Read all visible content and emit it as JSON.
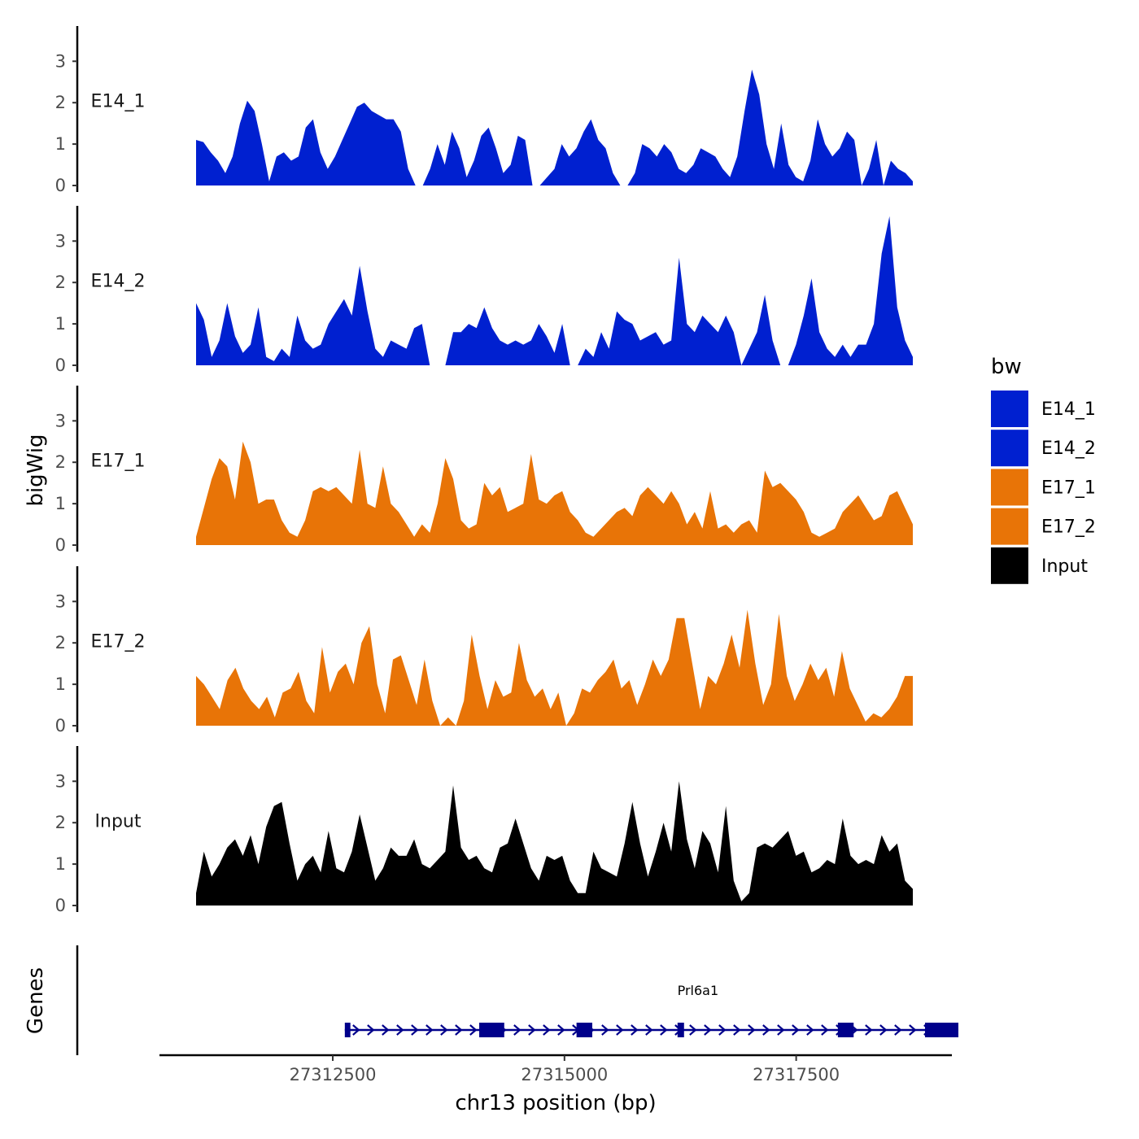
{
  "chart_data": {
    "type": "area",
    "chromosome": "chr13",
    "xlabel": "chr13 position (bp)",
    "ylabel": "bigWig",
    "genes_label": "Genes",
    "xlim": [
      27310630,
      27319180
    ],
    "x_ticks": [
      27312500,
      27315000,
      27317500
    ],
    "x_tick_labels": [
      "27312500",
      "27315000",
      "27317500"
    ],
    "ylim": [
      0,
      3.8
    ],
    "y_ticks": [
      0,
      1,
      2,
      3
    ],
    "y_tick_labels": [
      "0",
      "1",
      "2",
      "3"
    ],
    "grid": false,
    "legend": {
      "title": "bw",
      "position": "right",
      "entries": [
        {
          "name": "E14_1",
          "color": "#0020D0"
        },
        {
          "name": "E14_2",
          "color": "#0020D0"
        },
        {
          "name": "E17_1",
          "color": "#E87407"
        },
        {
          "name": "E17_2",
          "color": "#E87407"
        },
        {
          "name": "Input",
          "color": "#000000"
        }
      ]
    },
    "x_range": [
      27311080,
      27319620
    ],
    "series": [
      {
        "name": "E14_1",
        "color": "#0020D0",
        "values": [
          1.1,
          1.05,
          0.8,
          0.6,
          0.3,
          0.7,
          1.5,
          2.05,
          1.8,
          1.0,
          0.1,
          0.7,
          0.8,
          0.6,
          0.7,
          1.4,
          1.6,
          0.8,
          0.4,
          0.7,
          1.1,
          1.5,
          1.9,
          2.0,
          1.8,
          1.7,
          1.6,
          1.6,
          1.3,
          0.4,
          0.0,
          0.0,
          0.4,
          1.0,
          0.5,
          1.3,
          0.9,
          0.2,
          0.6,
          1.2,
          1.4,
          0.9,
          0.3,
          0.5,
          1.2,
          1.1,
          0.0,
          0.0,
          0.2,
          0.4,
          1.0,
          0.7,
          0.9,
          1.3,
          1.6,
          1.1,
          0.9,
          0.3,
          0.0,
          0.0,
          0.3,
          1.0,
          0.9,
          0.7,
          1.0,
          0.8,
          0.4,
          0.3,
          0.5,
          0.9,
          0.8,
          0.7,
          0.4,
          0.2,
          0.7,
          1.8,
          2.8,
          2.2,
          1.0,
          0.4,
          1.5,
          0.5,
          0.2,
          0.1,
          0.6,
          1.6,
          1.0,
          0.7,
          0.9,
          1.3,
          1.1,
          0.0,
          0.4,
          1.1,
          0.0,
          0.6,
          0.4,
          0.3,
          0.1
        ]
      },
      {
        "name": "E14_2",
        "color": "#0020D0",
        "values": [
          1.5,
          1.1,
          0.2,
          0.6,
          1.5,
          0.7,
          0.3,
          0.5,
          1.4,
          0.2,
          0.1,
          0.4,
          0.2,
          1.2,
          0.6,
          0.4,
          0.5,
          1.0,
          1.3,
          1.6,
          1.2,
          2.4,
          1.3,
          0.4,
          0.2,
          0.6,
          0.5,
          0.4,
          0.9,
          1.0,
          0.0,
          0.0,
          0.0,
          0.8,
          0.8,
          1.0,
          0.9,
          1.4,
          0.9,
          0.6,
          0.5,
          0.6,
          0.5,
          0.6,
          1.0,
          0.7,
          0.3,
          1.0,
          0.0,
          0.0,
          0.4,
          0.2,
          0.8,
          0.4,
          1.3,
          1.1,
          1.0,
          0.6,
          0.7,
          0.8,
          0.5,
          0.6,
          2.6,
          1.0,
          0.8,
          1.2,
          1.0,
          0.8,
          1.2,
          0.8,
          0.0,
          0.4,
          0.8,
          1.7,
          0.6,
          0.0,
          0.0,
          0.5,
          1.2,
          2.1,
          0.8,
          0.4,
          0.2,
          0.5,
          0.2,
          0.5,
          0.5,
          1.0,
          2.7,
          3.6,
          1.4,
          0.6,
          0.2
        ]
      },
      {
        "name": "E17_1",
        "color": "#E87407",
        "values": [
          0.2,
          0.9,
          1.6,
          2.1,
          1.9,
          1.1,
          2.5,
          2.0,
          1.0,
          1.1,
          1.1,
          0.6,
          0.3,
          0.2,
          0.6,
          1.3,
          1.4,
          1.3,
          1.4,
          1.2,
          1.0,
          2.3,
          1.0,
          0.9,
          1.9,
          1.0,
          0.8,
          0.5,
          0.2,
          0.5,
          0.3,
          1.0,
          2.1,
          1.6,
          0.6,
          0.4,
          0.5,
          1.5,
          1.2,
          1.4,
          0.8,
          0.9,
          1.0,
          2.2,
          1.1,
          1.0,
          1.2,
          1.3,
          0.8,
          0.6,
          0.3,
          0.2,
          0.4,
          0.6,
          0.8,
          0.9,
          0.7,
          1.2,
          1.4,
          1.2,
          1.0,
          1.3,
          1.0,
          0.5,
          0.8,
          0.4,
          1.3,
          0.4,
          0.5,
          0.3,
          0.5,
          0.6,
          0.3,
          1.8,
          1.4,
          1.5,
          1.3,
          1.1,
          0.8,
          0.3,
          0.2,
          0.3,
          0.4,
          0.8,
          1.0,
          1.2,
          0.9,
          0.6,
          0.7,
          1.2,
          1.3,
          0.9,
          0.5
        ]
      },
      {
        "name": "E17_2",
        "color": "#E87407",
        "values": [
          1.2,
          1.0,
          0.7,
          0.4,
          1.1,
          1.4,
          0.9,
          0.6,
          0.4,
          0.7,
          0.2,
          0.8,
          0.9,
          1.3,
          0.6,
          0.3,
          1.9,
          0.8,
          1.3,
          1.5,
          1.0,
          2.0,
          2.4,
          1.0,
          0.3,
          1.6,
          1.7,
          1.1,
          0.5,
          1.6,
          0.6,
          0.0,
          0.2,
          0.0,
          0.6,
          2.2,
          1.2,
          0.4,
          1.1,
          0.7,
          0.8,
          2.0,
          1.1,
          0.7,
          0.9,
          0.4,
          0.8,
          0.0,
          0.3,
          0.9,
          0.8,
          1.1,
          1.3,
          1.6,
          0.9,
          1.1,
          0.5,
          1.0,
          1.6,
          1.2,
          1.6,
          2.6,
          2.6,
          1.5,
          0.4,
          1.2,
          1.0,
          1.5,
          2.2,
          1.4,
          2.8,
          1.5,
          0.5,
          1.0,
          2.7,
          1.2,
          0.6,
          1.0,
          1.5,
          1.1,
          1.4,
          0.7,
          1.8,
          0.9,
          0.5,
          0.1,
          0.3,
          0.2,
          0.4,
          0.7,
          1.2,
          1.2
        ]
      },
      {
        "name": "Input",
        "color": "#000000",
        "values": [
          0.3,
          1.3,
          0.7,
          1.0,
          1.4,
          1.6,
          1.2,
          1.7,
          1.0,
          1.9,
          2.4,
          2.5,
          1.5,
          0.6,
          1.0,
          1.2,
          0.8,
          1.8,
          0.9,
          0.8,
          1.3,
          2.2,
          1.4,
          0.6,
          0.9,
          1.4,
          1.2,
          1.2,
          1.6,
          1.0,
          0.9,
          1.1,
          1.3,
          2.9,
          1.4,
          1.1,
          1.2,
          0.9,
          0.8,
          1.4,
          1.5,
          2.1,
          1.5,
          0.9,
          0.6,
          1.2,
          1.1,
          1.2,
          0.6,
          0.3,
          0.3,
          1.3,
          0.9,
          0.8,
          0.7,
          1.5,
          2.5,
          1.5,
          0.7,
          1.3,
          2.0,
          1.3,
          3.0,
          1.6,
          0.9,
          1.8,
          1.5,
          0.8,
          2.4,
          0.6,
          0.1,
          0.3,
          1.4,
          1.5,
          1.4,
          1.6,
          1.8,
          1.2,
          1.3,
          0.8,
          0.9,
          1.1,
          1.0,
          2.1,
          1.2,
          1.0,
          1.1,
          1.0,
          1.7,
          1.3,
          1.5,
          0.6,
          0.4
        ]
      }
    ],
    "genes": [
      {
        "name": "Prl6a1",
        "start": 27312630,
        "end": 27319250,
        "strand": "+",
        "color": "#00008B",
        "exons": [
          [
            27312630,
            27312690
          ],
          [
            27314080,
            27314350
          ],
          [
            27315130,
            27315300
          ],
          [
            27316220,
            27316290
          ],
          [
            27317950,
            27318120
          ],
          [
            27318890,
            27319250
          ]
        ]
      }
    ]
  }
}
